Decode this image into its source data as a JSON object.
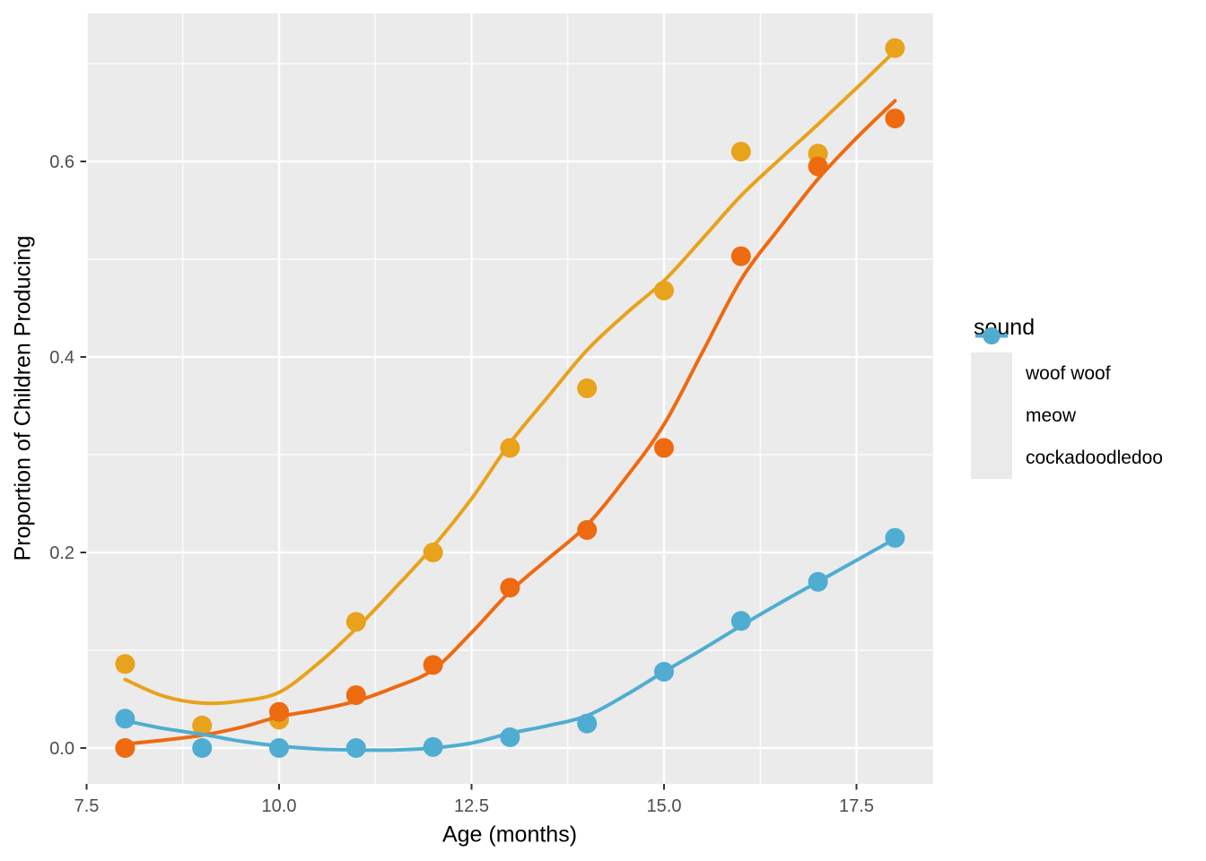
{
  "legend": {
    "title": "sound"
  },
  "style": {
    "figure_bg": "#FFFFFF",
    "panel_bg": "#EBEBEB",
    "grid_color": "#FFFFFF",
    "legend_key_bg": "#EAEAEA",
    "tick_label_color": "#4D4D4D",
    "tick_mark_color": "#333333",
    "title_color": "#000000"
  },
  "chart_data": {
    "type": "scatter",
    "title": "",
    "xlabel": "Age (months)",
    "ylabel": "Proportion of Children Producing",
    "xlim": [
      7.494,
      18.494
    ],
    "ylim": [
      -0.0367,
      0.7514
    ],
    "grid": true,
    "legend_position": "right",
    "x_ticks": {
      "values": [
        7.5,
        10.0,
        12.5,
        15.0,
        17.5
      ],
      "labels": [
        "7.5",
        "10.0",
        "12.5",
        "15.0",
        "17.5"
      ],
      "minor": [
        8.75,
        11.25,
        13.75,
        16.25
      ]
    },
    "y_ticks": {
      "values": [
        0.0,
        0.2,
        0.4,
        0.6
      ],
      "labels": [
        "0.0",
        "0.2",
        "0.4",
        "0.6"
      ],
      "minor": [
        0.1,
        0.3,
        0.5,
        0.7
      ]
    },
    "series": [
      {
        "name": "woof woof",
        "color": "#E8A21C",
        "points": [
          [
            8,
            0.086
          ],
          [
            9,
            0.023
          ],
          [
            10,
            0.029
          ],
          [
            11,
            0.129
          ],
          [
            12,
            0.2
          ],
          [
            13,
            0.307
          ],
          [
            14,
            0.368
          ],
          [
            15,
            0.468
          ],
          [
            16,
            0.61
          ],
          [
            17,
            0.608
          ],
          [
            18,
            0.716
          ]
        ],
        "smooth": [
          [
            8,
            0.07
          ],
          [
            8.5,
            0.053
          ],
          [
            9,
            0.046
          ],
          [
            9.5,
            0.048
          ],
          [
            10,
            0.057
          ],
          [
            10.5,
            0.086
          ],
          [
            11,
            0.122
          ],
          [
            11.5,
            0.163
          ],
          [
            12,
            0.206
          ],
          [
            12.5,
            0.255
          ],
          [
            13,
            0.312
          ],
          [
            13.5,
            0.36
          ],
          [
            14,
            0.407
          ],
          [
            14.5,
            0.444
          ],
          [
            15,
            0.478
          ],
          [
            15.5,
            0.521
          ],
          [
            16,
            0.565
          ],
          [
            16.5,
            0.602
          ],
          [
            17,
            0.638
          ],
          [
            17.5,
            0.675
          ],
          [
            18,
            0.713
          ]
        ]
      },
      {
        "name": "meow",
        "color": "#EE6A11",
        "points": [
          [
            8,
            0.0
          ],
          [
            10,
            0.037
          ],
          [
            11,
            0.054
          ],
          [
            12,
            0.085
          ],
          [
            13,
            0.164
          ],
          [
            14,
            0.223
          ],
          [
            15,
            0.307
          ],
          [
            16,
            0.503
          ],
          [
            17,
            0.595
          ],
          [
            18,
            0.644
          ]
        ],
        "smooth": [
          [
            8,
            0.004
          ],
          [
            8.5,
            0.008
          ],
          [
            9,
            0.013
          ],
          [
            9.5,
            0.021
          ],
          [
            10,
            0.032
          ],
          [
            10.5,
            0.039
          ],
          [
            11,
            0.048
          ],
          [
            11.5,
            0.062
          ],
          [
            12,
            0.08
          ],
          [
            12.5,
            0.118
          ],
          [
            13,
            0.16
          ],
          [
            13.5,
            0.194
          ],
          [
            14,
            0.228
          ],
          [
            14.5,
            0.276
          ],
          [
            15,
            0.331
          ],
          [
            15.5,
            0.405
          ],
          [
            16,
            0.479
          ],
          [
            16.5,
            0.532
          ],
          [
            17,
            0.582
          ],
          [
            17.5,
            0.624
          ],
          [
            18,
            0.662
          ]
        ]
      },
      {
        "name": "cockadoodledoo",
        "color": "#4FADD1",
        "points": [
          [
            8,
            0.03
          ],
          [
            9,
            0.0
          ],
          [
            10,
            0.0
          ],
          [
            11,
            0.0
          ],
          [
            12,
            0.001
          ],
          [
            13,
            0.011
          ],
          [
            14,
            0.025
          ],
          [
            15,
            0.078
          ],
          [
            16,
            0.13
          ],
          [
            17,
            0.17
          ],
          [
            18,
            0.215
          ]
        ],
        "smooth": [
          [
            8,
            0.028
          ],
          [
            8.5,
            0.02
          ],
          [
            9,
            0.014
          ],
          [
            9.5,
            0.007
          ],
          [
            10,
            0.002
          ],
          [
            10.5,
            -0.001
          ],
          [
            11,
            -0.002
          ],
          [
            11.5,
            -0.002
          ],
          [
            12,
            0.0
          ],
          [
            12.5,
            0.005
          ],
          [
            13,
            0.015
          ],
          [
            13.5,
            0.023
          ],
          [
            14,
            0.033
          ],
          [
            14.5,
            0.054
          ],
          [
            15,
            0.078
          ],
          [
            15.5,
            0.101
          ],
          [
            16,
            0.125
          ],
          [
            16.5,
            0.148
          ],
          [
            17,
            0.17
          ],
          [
            17.5,
            0.192
          ],
          [
            18,
            0.214
          ]
        ]
      }
    ]
  }
}
